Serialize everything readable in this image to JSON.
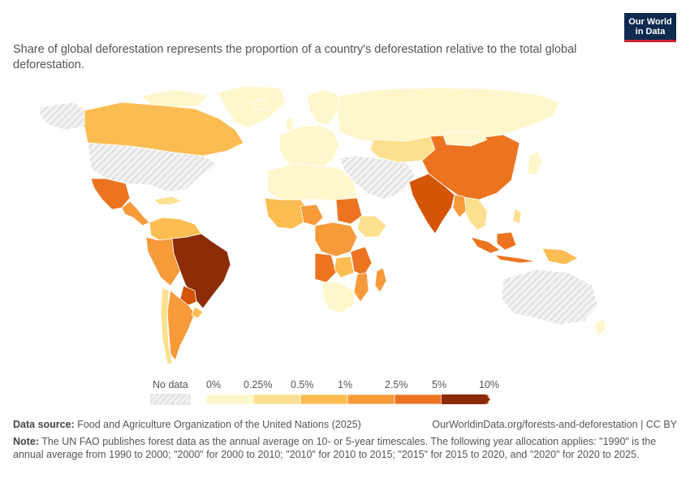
{
  "brand": {
    "line1": "Our World",
    "line2": "in Data"
  },
  "subtitle": "Share of global deforestation represents the proportion of a country's deforestation relative to the total global deforestation.",
  "legend": {
    "no_data_label": "No data",
    "bins": [
      {
        "label": "0%",
        "color": "#fff7cc"
      },
      {
        "label": "0.25%",
        "color": "#fde08f"
      },
      {
        "label": "0.5%",
        "color": "#fbbd52"
      },
      {
        "label": "1%",
        "color": "#f79a3a"
      },
      {
        "label": "2.5%",
        "color": "#ec7420"
      },
      {
        "label": "5%",
        "color": "#d45408"
      },
      {
        "label": "10%",
        "color": "#8b2c06"
      }
    ]
  },
  "footer": {
    "source_label": "Data source:",
    "source_text": "Food and Agriculture Organization of the United Nations (2025)",
    "url_text": "OurWorldinData.org/forests-and-deforestation | CC BY",
    "note_label": "Note:",
    "note_text": "The UN FAO publishes forest data as the annual average on 10- or 5-year timescales. The following year allocation applies: \"1990\" is the annual average from 1990 to 2000; \"2000\" for 2000 to 2010; \"2010\" for 2010 to 2015; \"2015\" for 2015 to 2020, and \"2020\" for 2020 to 2025."
  },
  "colors": {
    "no_data": "#e6e6e6",
    "lightest": "#fff7cc",
    "light": "#fde08f",
    "mid_light": "#fbbd52",
    "mid": "#f79a3a",
    "mid_dark": "#ec7420",
    "dark": "#d45408",
    "darkest": "#8b2c06",
    "logo_bg": "#0e2a4f",
    "logo_accent": "#cf2232"
  }
}
